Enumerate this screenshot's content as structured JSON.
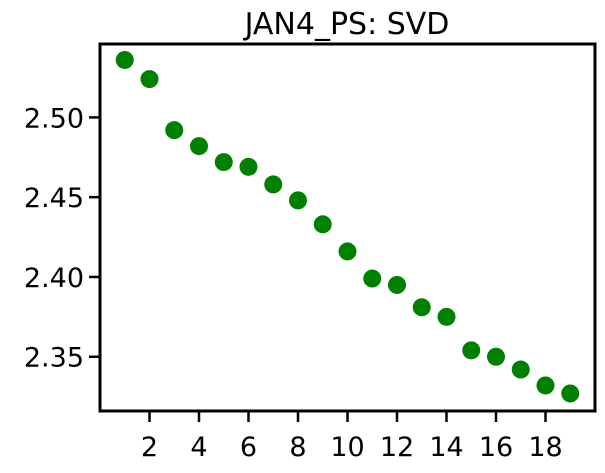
{
  "chart_data": {
    "type": "scatter",
    "title": "JAN4_PS: SVD",
    "xlabel": "",
    "ylabel": "",
    "xlim": [
      0.0,
      20.0
    ],
    "ylim": [
      2.316,
      2.546
    ],
    "x_ticks": [
      2,
      4,
      6,
      8,
      10,
      12,
      14,
      16,
      18
    ],
    "y_ticks": [
      2.35,
      2.4,
      2.45,
      2.5
    ],
    "grid": false,
    "marker_color": "#008000",
    "points": [
      {
        "x": 1,
        "y": 2.536
      },
      {
        "x": 2,
        "y": 2.524
      },
      {
        "x": 3,
        "y": 2.492
      },
      {
        "x": 4,
        "y": 2.482
      },
      {
        "x": 5,
        "y": 2.472
      },
      {
        "x": 6,
        "y": 2.469
      },
      {
        "x": 7,
        "y": 2.458
      },
      {
        "x": 8,
        "y": 2.448
      },
      {
        "x": 9,
        "y": 2.433
      },
      {
        "x": 10,
        "y": 2.416
      },
      {
        "x": 11,
        "y": 2.399
      },
      {
        "x": 12,
        "y": 2.395
      },
      {
        "x": 13,
        "y": 2.381
      },
      {
        "x": 14,
        "y": 2.375
      },
      {
        "x": 15,
        "y": 2.354
      },
      {
        "x": 16,
        "y": 2.35
      },
      {
        "x": 17,
        "y": 2.342
      },
      {
        "x": 18,
        "y": 2.332
      },
      {
        "x": 19,
        "y": 2.327
      }
    ]
  }
}
